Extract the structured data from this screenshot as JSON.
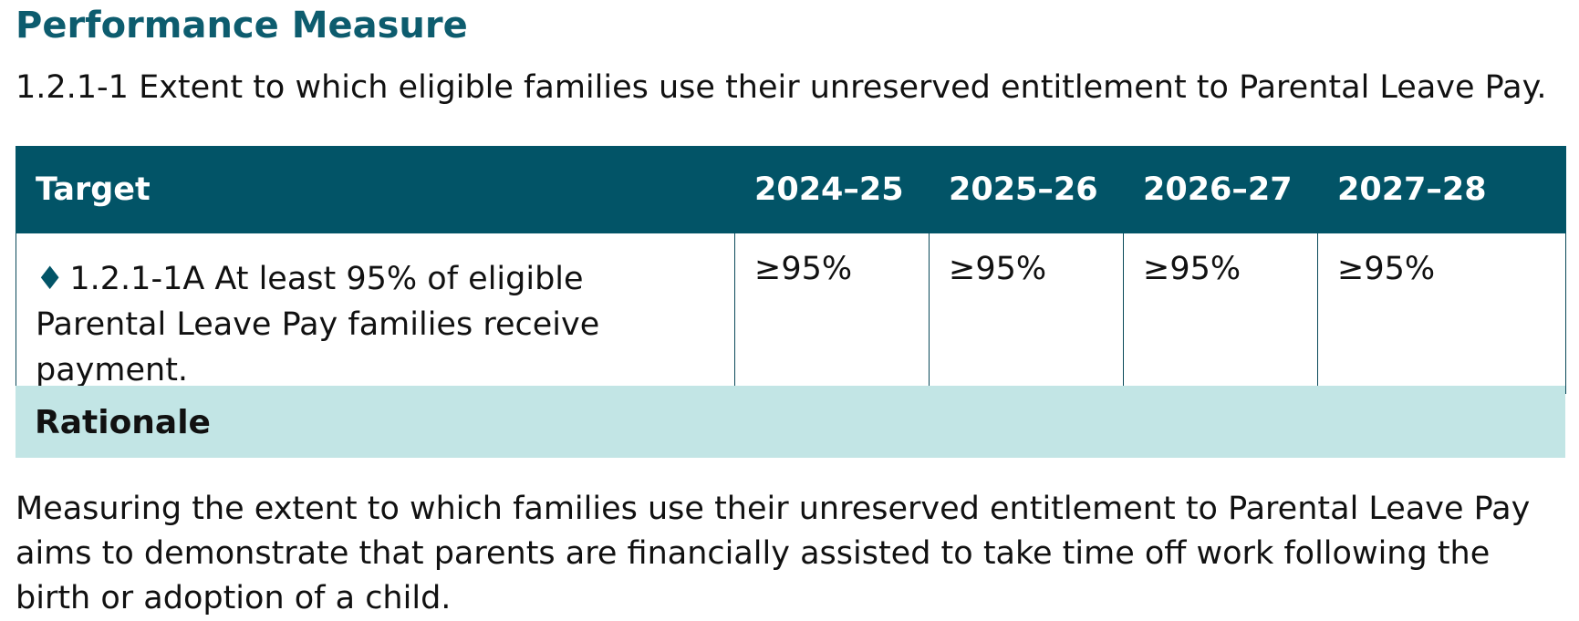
{
  "heading": "Performance Measure",
  "measure": {
    "description": "1.2.1-1 Extent to which eligible families use their unreserved entitlement to Parental Leave Pay."
  },
  "table": {
    "headers": [
      "Target",
      "2024–25",
      "2025–26",
      "2026–27",
      "2027–28"
    ],
    "rows": [
      {
        "marker": "♦",
        "target": "1.2.1-1A At least 95% of eligible Parental Leave Pay families receive payment.",
        "values": [
          "≥95%",
          "≥95%",
          "≥95%",
          "≥95%"
        ]
      }
    ]
  },
  "rationale": {
    "title": "Rationale",
    "body": "Measuring the extent to which families use their unreserved entitlement to Parental Leave Pay aims to demonstrate that parents are financially assisted to take time off work following the birth or adoption of a child."
  },
  "colors": {
    "heading": "#0d5c6e",
    "table_header_bg": "#025467",
    "rationale_bg": "#c2e5e5"
  }
}
